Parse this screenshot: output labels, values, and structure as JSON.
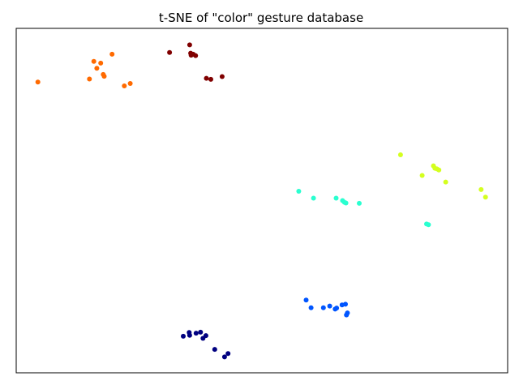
{
  "chart_data": {
    "type": "scatter",
    "title": "t-SNE of \"color\" gesture database",
    "xlabel": "",
    "ylabel": "",
    "xlim": [
      0,
      100
    ],
    "ylim": [
      0,
      100
    ],
    "grid": false,
    "legend": "none",
    "axis_ticks": false,
    "series": [
      {
        "color": "#ff6a00",
        "points": [
          [
            4.4,
            84.4
          ],
          [
            14.9,
            85.3
          ],
          [
            15.8,
            90.4
          ],
          [
            16.4,
            88.4
          ],
          [
            17.2,
            89.9
          ],
          [
            17.7,
            86.6
          ],
          [
            17.9,
            86.1
          ],
          [
            19.5,
            92.5
          ],
          [
            22.0,
            83.3
          ],
          [
            23.2,
            84.0
          ]
        ]
      },
      {
        "color": "#800000",
        "points": [
          [
            31.2,
            93.0
          ],
          [
            35.3,
            95.2
          ],
          [
            35.5,
            92.8
          ],
          [
            35.6,
            92.2
          ],
          [
            36.0,
            92.5
          ],
          [
            36.5,
            92.1
          ],
          [
            38.7,
            85.5
          ],
          [
            39.6,
            85.2
          ],
          [
            41.9,
            86.0
          ]
        ]
      },
      {
        "color": "#d4ff1f",
        "points": [
          [
            78.2,
            63.3
          ],
          [
            82.6,
            57.3
          ],
          [
            84.9,
            60.1
          ],
          [
            85.2,
            59.4
          ],
          [
            85.6,
            59.2
          ],
          [
            86.0,
            58.9
          ],
          [
            87.4,
            55.4
          ],
          [
            94.6,
            53.2
          ],
          [
            95.5,
            51.0
          ]
        ]
      },
      {
        "color": "#2affd0",
        "points": [
          [
            57.5,
            52.7
          ],
          [
            60.5,
            50.7
          ],
          [
            65.1,
            50.7
          ],
          [
            66.4,
            50.0
          ],
          [
            66.8,
            49.5
          ],
          [
            67.1,
            49.3
          ],
          [
            69.8,
            49.2
          ],
          [
            83.5,
            43.2
          ],
          [
            83.9,
            43.0
          ]
        ]
      },
      {
        "color": "#0055ff",
        "points": [
          [
            59.0,
            21.1
          ],
          [
            60.0,
            18.9
          ],
          [
            62.5,
            18.9
          ],
          [
            63.8,
            19.4
          ],
          [
            64.9,
            18.5
          ],
          [
            65.2,
            18.8
          ],
          [
            66.3,
            19.7
          ],
          [
            67.0,
            19.9
          ],
          [
            67.2,
            16.8
          ],
          [
            67.4,
            17.4
          ]
        ]
      },
      {
        "color": "#000080",
        "points": [
          [
            34.0,
            10.6
          ],
          [
            35.2,
            11.7
          ],
          [
            35.3,
            10.9
          ],
          [
            36.6,
            11.5
          ],
          [
            37.5,
            11.8
          ],
          [
            38.0,
            10.0
          ],
          [
            38.6,
            10.8
          ],
          [
            40.4,
            6.8
          ],
          [
            42.4,
            4.6
          ],
          [
            43.1,
            5.6
          ]
        ]
      }
    ]
  }
}
